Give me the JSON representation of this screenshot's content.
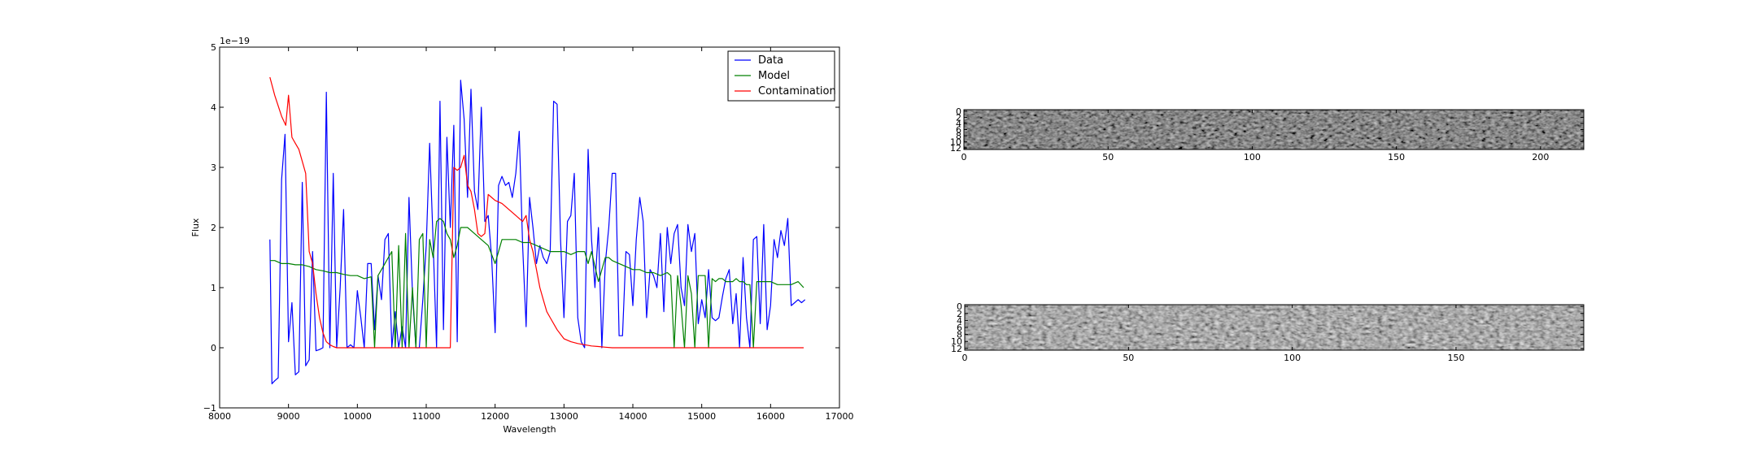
{
  "colors": {
    "data": "#0000ff",
    "model": "#008000",
    "contamination": "#ff0000"
  },
  "chart_data": [
    {
      "type": "line",
      "xlabel": "Wavelength",
      "ylabel": "Flux",
      "y_offset_label": "1e−19",
      "xlim": [
        8000,
        17000
      ],
      "ylim": [
        -1,
        5
      ],
      "xticks": [
        8000,
        9000,
        10000,
        11000,
        12000,
        13000,
        14000,
        15000,
        16000,
        17000
      ],
      "yticks": [
        -1,
        0,
        1,
        2,
        3,
        4,
        5
      ],
      "ytick_labels": [
        "−1",
        "0",
        "1",
        "2",
        "3",
        "4",
        "5"
      ],
      "grid": false,
      "legend_position": "top-right",
      "legend": [
        "Data",
        "Model",
        "Contamination"
      ],
      "series": [
        {
          "name": "Data",
          "x": [
            8730,
            8760,
            8800,
            8850,
            8900,
            8950,
            9000,
            9050,
            9100,
            9150,
            9200,
            9250,
            9300,
            9350,
            9400,
            9450,
            9500,
            9550,
            9600,
            9650,
            9700,
            9750,
            9800,
            9850,
            9900,
            9950,
            10000,
            10050,
            10100,
            10150,
            10200,
            10250,
            10300,
            10350,
            10400,
            10450,
            10500,
            10550,
            10600,
            10650,
            10700,
            10750,
            10800,
            10850,
            10900,
            10950,
            11000,
            11050,
            11100,
            11150,
            11200,
            11250,
            11300,
            11350,
            11400,
            11450,
            11500,
            11550,
            11600,
            11650,
            11700,
            11750,
            11800,
            11850,
            11900,
            11950,
            12000,
            12050,
            12100,
            12150,
            12200,
            12250,
            12300,
            12350,
            12400,
            12450,
            12500,
            12550,
            12600,
            12650,
            12700,
            12750,
            12800,
            12850,
            12900,
            12950,
            13000,
            13050,
            13100,
            13150,
            13200,
            13250,
            13300,
            13350,
            13400,
            13450,
            13500,
            13550,
            13600,
            13650,
            13700,
            13750,
            13800,
            13850,
            13900,
            13950,
            14000,
            14050,
            14100,
            14150,
            14200,
            14250,
            14300,
            14350,
            14400,
            14450,
            14500,
            14550,
            14600,
            14650,
            14700,
            14750,
            14800,
            14850,
            14900,
            14950,
            15000,
            15050,
            15100,
            15150,
            15200,
            15250,
            15300,
            15350,
            15400,
            15450,
            15500,
            15550,
            15600,
            15650,
            15700,
            15750,
            15800,
            15850,
            15900,
            15950,
            16000,
            16050,
            16100,
            16150,
            16200,
            16250,
            16300,
            16350,
            16400,
            16450,
            16500
          ],
          "values": [
            1.8,
            -0.6,
            -0.55,
            -0.5,
            2.8,
            3.55,
            0.1,
            0.75,
            -0.45,
            -0.4,
            2.75,
            -0.3,
            -0.2,
            1.6,
            -0.05,
            -0.03,
            0.0,
            4.25,
            0.0,
            2.9,
            0.0,
            1.0,
            2.3,
            0.0,
            0.05,
            0.0,
            0.95,
            0.5,
            0.0,
            1.4,
            1.4,
            0.3,
            1.2,
            0.8,
            1.8,
            1.9,
            0.0,
            0.6,
            0.0,
            0.35,
            0.0,
            2.5,
            0.9,
            0.0,
            0.0,
            0.8,
            1.7,
            3.4,
            1.75,
            0.0,
            4.1,
            0.3,
            3.5,
            2.0,
            3.7,
            0.1,
            4.45,
            3.8,
            2.5,
            4.3,
            2.6,
            2.3,
            4.0,
            2.1,
            2.2,
            1.5,
            0.25,
            2.7,
            2.85,
            2.7,
            2.75,
            2.5,
            2.9,
            3.6,
            1.7,
            0.35,
            2.5,
            2.0,
            1.4,
            1.7,
            1.5,
            1.4,
            1.6,
            4.1,
            4.05,
            1.8,
            0.5,
            2.1,
            2.2,
            2.9,
            0.5,
            0.1,
            0.0,
            3.3,
            1.8,
            1.0,
            2.0,
            0.0,
            1.4,
            2.0,
            2.9,
            2.9,
            0.2,
            0.2,
            1.6,
            1.55,
            0.7,
            1.8,
            2.5,
            2.1,
            0.5,
            1.3,
            1.2,
            1.0,
            1.9,
            0.6,
            2.0,
            1.4,
            1.9,
            2.05,
            1.0,
            0.7,
            2.05,
            1.6,
            1.9,
            0.4,
            0.8,
            0.5,
            1.3,
            0.5,
            0.45,
            0.5,
            0.85,
            1.15,
            1.3,
            0.4,
            0.9,
            0.0,
            1.5,
            0.5,
            0.0,
            1.8,
            1.85,
            0.4,
            2.05,
            0.3,
            0.7,
            1.8,
            1.5,
            1.95,
            1.7,
            2.15,
            0.7,
            0.75,
            0.8,
            0.75,
            0.8
          ],
          "color": "#0000ff"
        },
        {
          "name": "Model",
          "x": [
            8730,
            8800,
            8900,
            9000,
            9100,
            9200,
            9300,
            9400,
            9500,
            9600,
            9700,
            9800,
            9900,
            10000,
            10100,
            10200,
            10250,
            10300,
            10350,
            10400,
            10450,
            10500,
            10550,
            10600,
            10650,
            10700,
            10750,
            10800,
            10850,
            10900,
            10950,
            11000,
            11050,
            11100,
            11150,
            11200,
            11250,
            11300,
            11350,
            11400,
            11450,
            11500,
            11550,
            11600,
            11700,
            11800,
            11900,
            12000,
            12100,
            12150,
            12200,
            12300,
            12400,
            12500,
            12600,
            12700,
            12800,
            12900,
            13000,
            13100,
            13200,
            13300,
            13350,
            13400,
            13500,
            13600,
            13650,
            13700,
            13800,
            13900,
            14000,
            14100,
            14200,
            14300,
            14400,
            14500,
            14550,
            14600,
            14650,
            14700,
            14750,
            14800,
            14850,
            14900,
            14950,
            15000,
            15050,
            15100,
            15150,
            15200,
            15250,
            15300,
            15350,
            15400,
            15450,
            15500,
            15550,
            15600,
            15650,
            15700,
            15750,
            15800,
            15900,
            16000,
            16100,
            16200,
            16300,
            16400,
            16480
          ],
          "values": [
            1.45,
            1.45,
            1.4,
            1.4,
            1.38,
            1.38,
            1.35,
            1.3,
            1.28,
            1.25,
            1.25,
            1.22,
            1.2,
            1.2,
            1.15,
            1.18,
            0.0,
            1.2,
            1.3,
            1.4,
            1.5,
            1.6,
            0.0,
            1.7,
            0.0,
            1.9,
            0.0,
            1.0,
            0.0,
            1.8,
            1.9,
            0.0,
            1.8,
            1.5,
            2.1,
            2.15,
            2.1,
            1.9,
            1.8,
            1.5,
            1.7,
            2.0,
            2.0,
            2.0,
            1.9,
            1.8,
            1.7,
            1.4,
            1.8,
            1.8,
            1.8,
            1.8,
            1.75,
            1.75,
            1.7,
            1.65,
            1.6,
            1.6,
            1.6,
            1.55,
            1.6,
            1.6,
            1.4,
            1.6,
            1.1,
            1.5,
            1.5,
            1.45,
            1.4,
            1.35,
            1.3,
            1.3,
            1.25,
            1.25,
            1.2,
            1.25,
            1.2,
            0.0,
            1.2,
            0.7,
            0.0,
            1.2,
            0.9,
            0.0,
            1.2,
            1.2,
            1.2,
            0.0,
            1.15,
            1.1,
            1.15,
            1.15,
            1.1,
            1.1,
            1.1,
            1.15,
            1.1,
            1.1,
            1.05,
            1.05,
            0.0,
            1.1,
            1.1,
            1.1,
            1.05,
            1.05,
            1.05,
            1.1,
            1.0
          ],
          "color": "#008000"
        },
        {
          "name": "Contamination",
          "x": [
            8730,
            8800,
            8900,
            8960,
            9000,
            9050,
            9100,
            9150,
            9200,
            9250,
            9300,
            9350,
            9400,
            9450,
            9500,
            9550,
            9600,
            9650,
            9700,
            9800,
            10000,
            10500,
            11000,
            11350,
            11400,
            11450,
            11500,
            11550,
            11600,
            11650,
            11700,
            11750,
            11800,
            11850,
            11900,
            11950,
            12000,
            12100,
            12200,
            12300,
            12350,
            12400,
            12450,
            12500,
            12550,
            12600,
            12650,
            12700,
            12750,
            12800,
            12900,
            13000,
            13100,
            13200,
            13300,
            13400,
            13500,
            13600,
            13700,
            14000,
            15000,
            16000,
            16480
          ],
          "values": [
            4.5,
            4.2,
            3.85,
            3.7,
            4.2,
            3.5,
            3.4,
            3.3,
            3.1,
            2.9,
            1.6,
            1.4,
            0.9,
            0.5,
            0.25,
            0.1,
            0.05,
            0.02,
            0.0,
            0.0,
            0.0,
            0.0,
            0.0,
            0.0,
            3.0,
            2.95,
            3.0,
            3.2,
            2.7,
            2.6,
            2.3,
            1.9,
            1.85,
            1.9,
            2.55,
            2.5,
            2.45,
            2.4,
            2.3,
            2.2,
            2.15,
            2.1,
            2.2,
            1.8,
            1.6,
            1.3,
            1.0,
            0.8,
            0.6,
            0.5,
            0.3,
            0.15,
            0.1,
            0.07,
            0.05,
            0.03,
            0.02,
            0.01,
            0.0,
            0.0,
            0.0,
            0.0,
            0.0
          ],
          "color": "#ff0000"
        }
      ]
    },
    {
      "type": "heatmap",
      "colormap": "gray",
      "xlim": [
        0,
        215
      ],
      "ylim": [
        13,
        0
      ],
      "xticks": [
        0,
        50,
        100,
        150,
        200
      ],
      "yticks": [
        0,
        2,
        4,
        6,
        8,
        10,
        12
      ],
      "ytick_labels": [
        "0",
        "2",
        "4",
        "6",
        "8",
        "10",
        "12"
      ]
    },
    {
      "type": "heatmap",
      "colormap": "gray",
      "xlim": [
        0,
        189
      ],
      "ylim": [
        13,
        0
      ],
      "xticks": [
        0,
        50,
        100,
        150
      ],
      "yticks": [
        0,
        2,
        4,
        6,
        8,
        10,
        12
      ],
      "ytick_labels": [
        "0",
        "2",
        "4",
        "6",
        "8",
        "10",
        "12"
      ]
    }
  ]
}
